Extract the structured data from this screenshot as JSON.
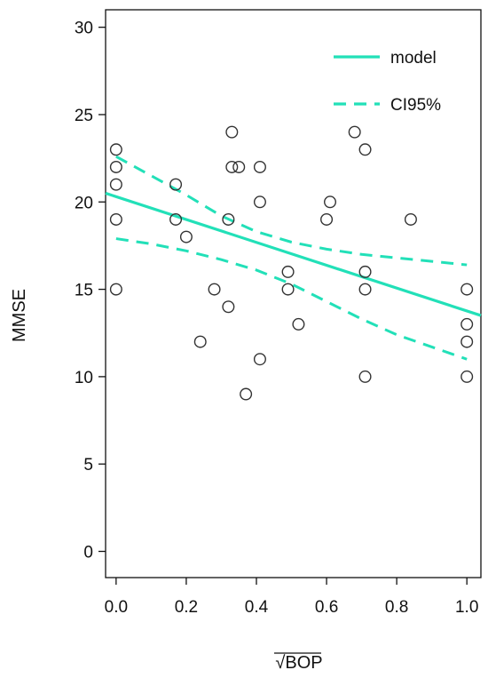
{
  "chart_data": {
    "type": "scatter",
    "xlabel": "BOP",
    "xlabel_prefix": "√",
    "ylabel": "MMSE",
    "xlim": [
      -0.03,
      1.04
    ],
    "ylim": [
      -1.5,
      31
    ],
    "x_ticks": [
      "0.0",
      "0.2",
      "0.4",
      "0.6",
      "0.8",
      "1.0"
    ],
    "x_tick_values": [
      0,
      0.2,
      0.4,
      0.6,
      0.8,
      1.0
    ],
    "y_ticks": [
      "0",
      "5",
      "10",
      "15",
      "20",
      "25",
      "30"
    ],
    "y_tick_values": [
      0,
      5,
      10,
      15,
      20,
      25,
      30
    ],
    "grid": false,
    "legend_position": "top-right",
    "colors": {
      "line": "#22e0b8",
      "points": "#333333",
      "axis": "#111111"
    },
    "points": [
      {
        "x": 0.0,
        "y": 23
      },
      {
        "x": 0.0,
        "y": 22
      },
      {
        "x": 0.0,
        "y": 21
      },
      {
        "x": 0.0,
        "y": 19
      },
      {
        "x": 0.0,
        "y": 15
      },
      {
        "x": 0.17,
        "y": 21
      },
      {
        "x": 0.17,
        "y": 19
      },
      {
        "x": 0.2,
        "y": 18
      },
      {
        "x": 0.24,
        "y": 12
      },
      {
        "x": 0.28,
        "y": 15
      },
      {
        "x": 0.32,
        "y": 19
      },
      {
        "x": 0.32,
        "y": 14
      },
      {
        "x": 0.33,
        "y": 24
      },
      {
        "x": 0.33,
        "y": 22
      },
      {
        "x": 0.35,
        "y": 22
      },
      {
        "x": 0.37,
        "y": 9
      },
      {
        "x": 0.41,
        "y": 22
      },
      {
        "x": 0.41,
        "y": 20
      },
      {
        "x": 0.41,
        "y": 11
      },
      {
        "x": 0.49,
        "y": 16
      },
      {
        "x": 0.49,
        "y": 15
      },
      {
        "x": 0.52,
        "y": 13
      },
      {
        "x": 0.61,
        "y": 20
      },
      {
        "x": 0.6,
        "y": 19
      },
      {
        "x": 0.68,
        "y": 24
      },
      {
        "x": 0.71,
        "y": 23
      },
      {
        "x": 0.71,
        "y": 16
      },
      {
        "x": 0.71,
        "y": 15
      },
      {
        "x": 0.71,
        "y": 10
      },
      {
        "x": 0.84,
        "y": 19
      },
      {
        "x": 1.0,
        "y": 15
      },
      {
        "x": 1.0,
        "y": 13
      },
      {
        "x": 1.0,
        "y": 12
      },
      {
        "x": 1.0,
        "y": 10
      }
    ],
    "series": [
      {
        "name": "model",
        "style": "solid",
        "x": [
          -0.03,
          1.04
        ],
        "y": [
          20.5,
          13.5
        ]
      },
      {
        "name": "CI95%",
        "style": "dashed",
        "role": "upper",
        "x": [
          0.0,
          0.1,
          0.2,
          0.3,
          0.4,
          0.5,
          0.6,
          0.7,
          0.8,
          0.9,
          1.0
        ],
        "y": [
          22.6,
          21.5,
          20.4,
          19.2,
          18.3,
          17.7,
          17.3,
          17.0,
          16.8,
          16.6,
          16.4
        ]
      },
      {
        "name": "CI95%",
        "style": "dashed",
        "role": "lower",
        "x": [
          0.0,
          0.1,
          0.2,
          0.3,
          0.4,
          0.5,
          0.6,
          0.7,
          0.8,
          0.9,
          1.0
        ],
        "y": [
          17.9,
          17.6,
          17.2,
          16.7,
          16.1,
          15.3,
          14.3,
          13.3,
          12.4,
          11.7,
          11.0
        ]
      }
    ],
    "legend": [
      {
        "label": "model",
        "style": "solid"
      },
      {
        "label": "CI95%",
        "style": "dashed"
      }
    ]
  }
}
